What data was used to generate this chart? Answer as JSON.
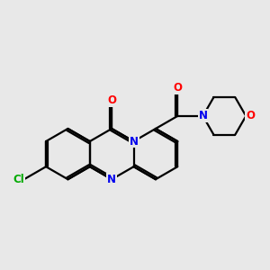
{
  "bg_color": "#e8e8e8",
  "bond_color": "#000000",
  "bond_width": 1.6,
  "atom_colors": {
    "N": "#0000ee",
    "O": "#ff0000",
    "Cl": "#00aa00",
    "C": "#000000"
  },
  "font_size": 8.5,
  "fig_size": [
    3.0,
    3.0
  ],
  "dpi": 100
}
